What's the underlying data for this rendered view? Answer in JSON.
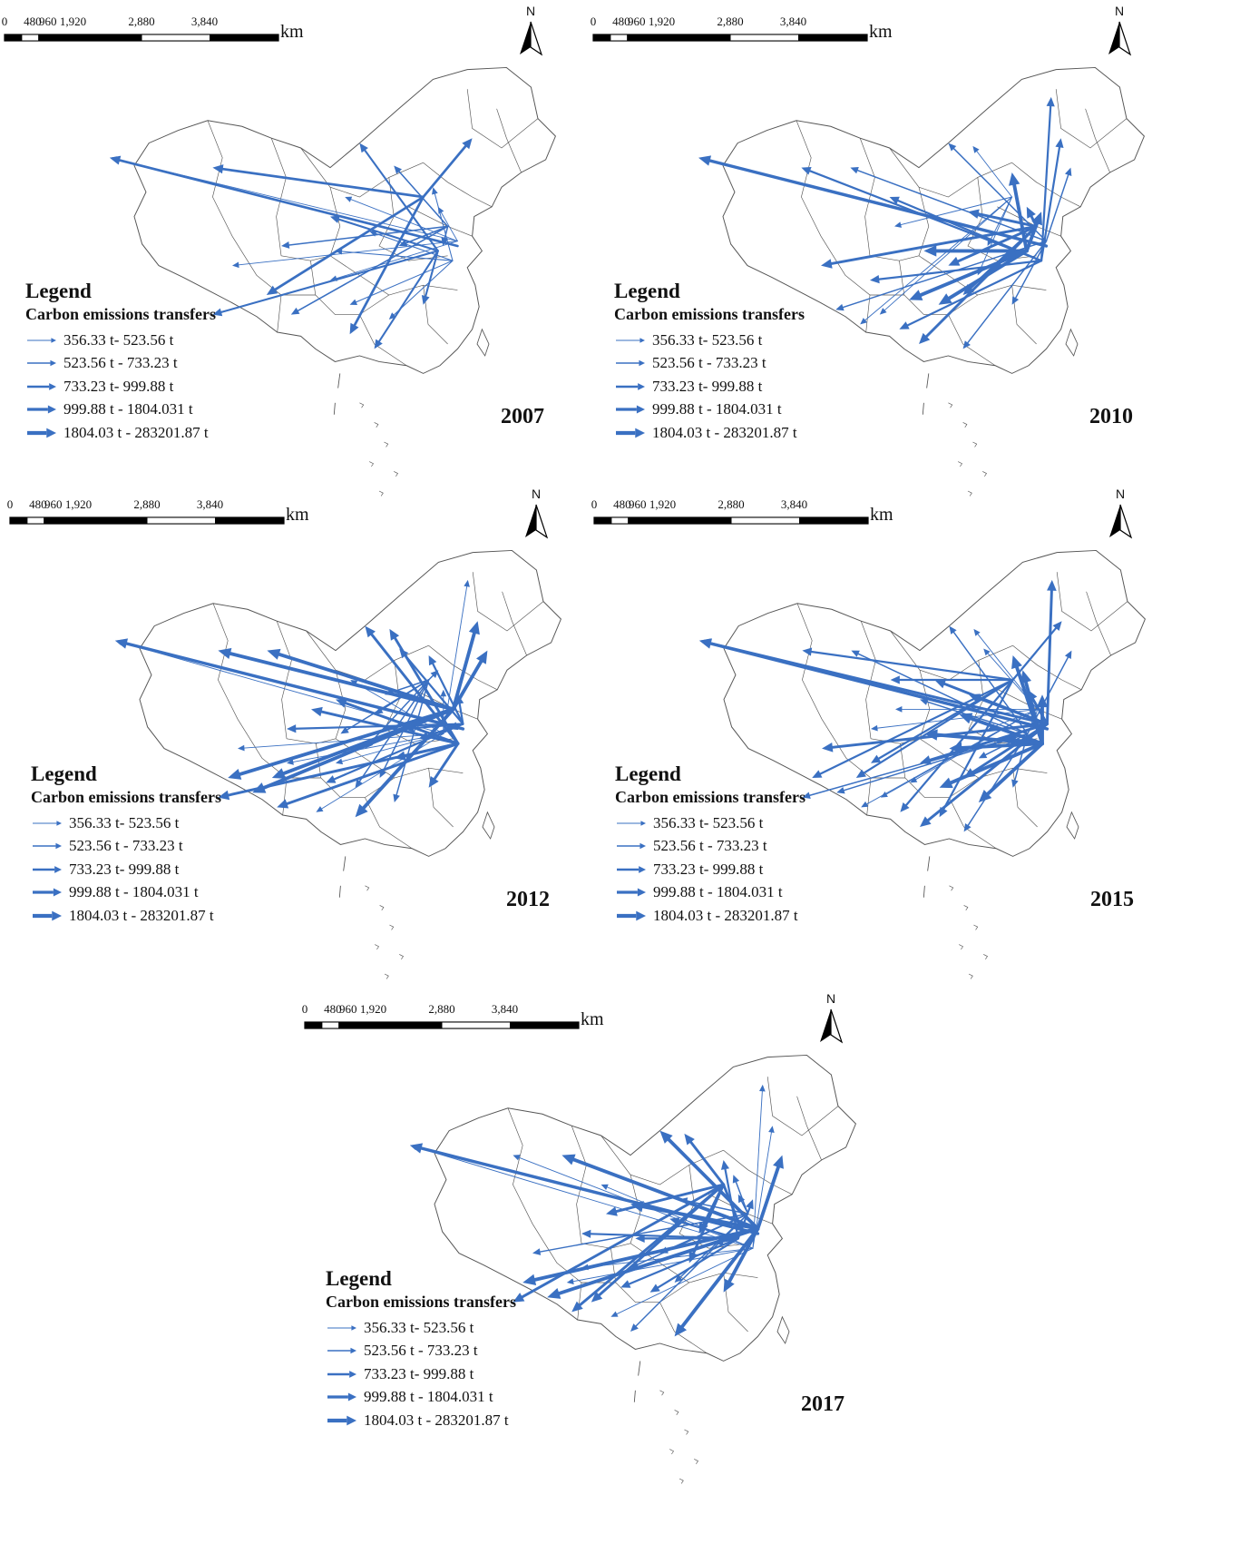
{
  "scale": {
    "labels": [
      "0",
      "480",
      "960",
      "1,920",
      "2,880",
      "3,840"
    ],
    "unit": "km"
  },
  "north_label": "N",
  "legend": {
    "title": "Legend",
    "subtitle": "Carbon emissions transfers",
    "items": [
      {
        "label": "356.33 t- 523.56 t",
        "class": 1
      },
      {
        "label": "523.56 t - 733.23 t",
        "class": 2
      },
      {
        "label": "733.23 t- 999.88 t",
        "class": 3
      },
      {
        "label": "999.88 t - 1804.031 t",
        "class": 4
      },
      {
        "label": "1804.03 t - 283201.87 t",
        "class": 5
      }
    ]
  },
  "colors": {
    "arrow": "#3a70c2",
    "boundary": "#555555"
  },
  "maps": [
    {
      "year": "2007",
      "flows": 24
    },
    {
      "year": "2010",
      "flows": 30
    },
    {
      "year": "2012",
      "flows": 40
    },
    {
      "year": "2015",
      "flows": 44
    },
    {
      "year": "2017",
      "flows": 40
    }
  ]
}
